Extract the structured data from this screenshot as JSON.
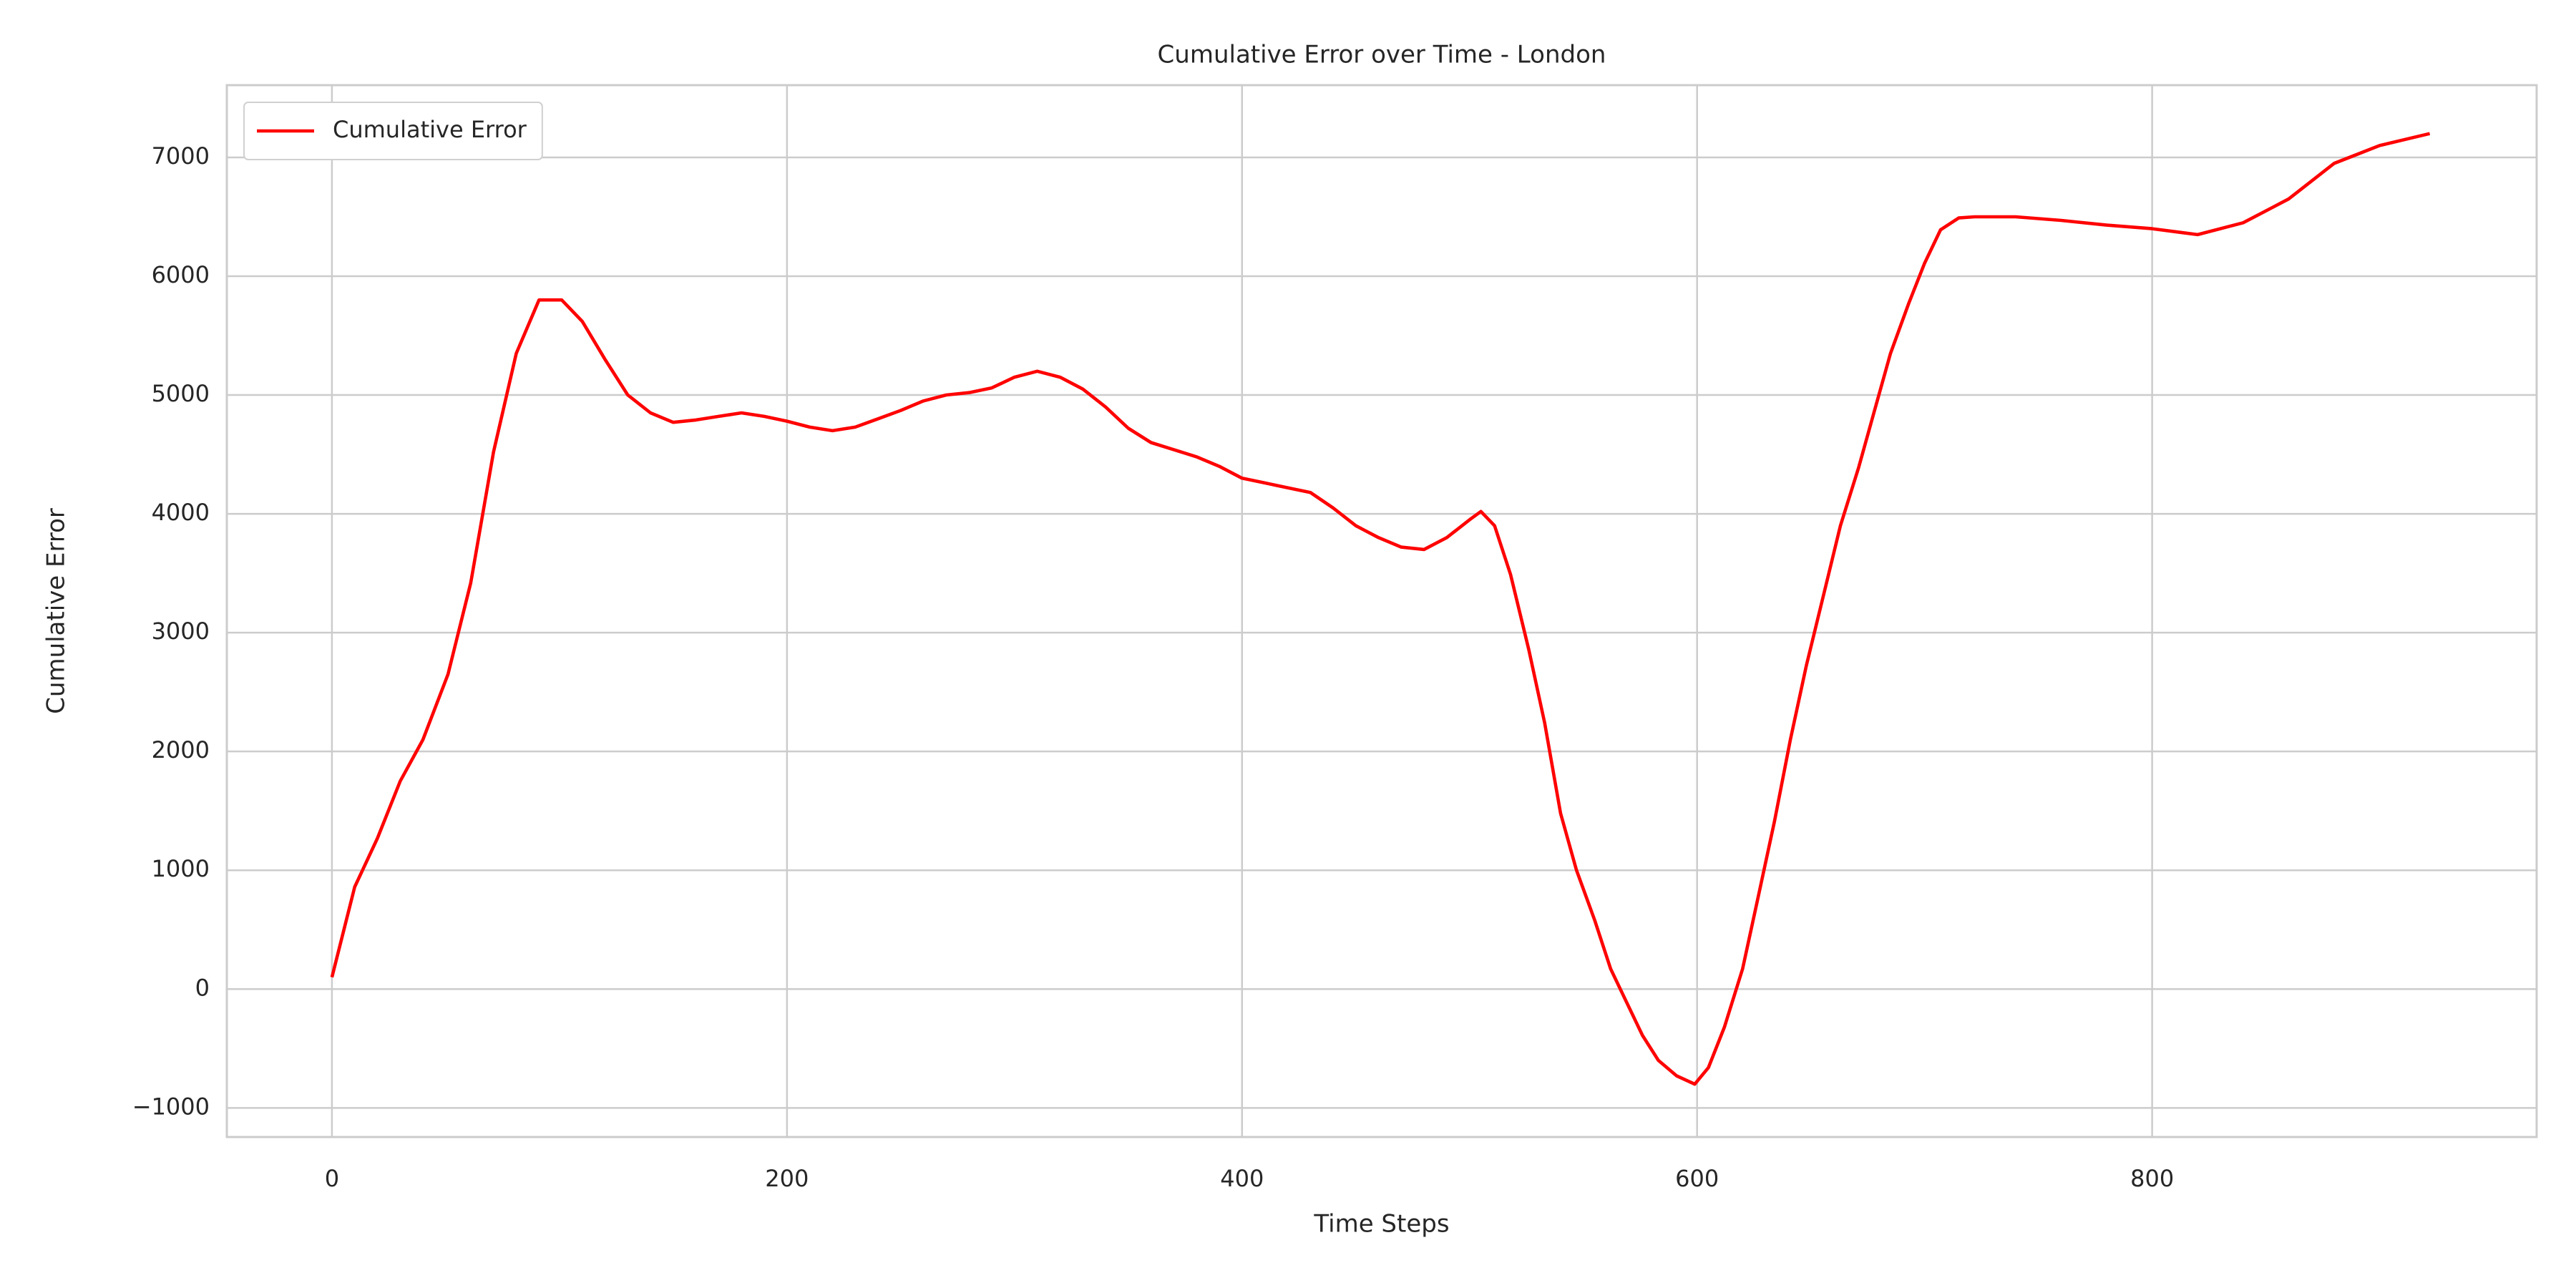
{
  "chart_data": {
    "type": "line",
    "title": "Cumulative Error over Time - London",
    "xlabel": "Time Steps",
    "ylabel": "Cumulative Error",
    "x": [
      0,
      10,
      20,
      30,
      40,
      51,
      61,
      71,
      81,
      91,
      101,
      110,
      120,
      130,
      140,
      150,
      160,
      170,
      180,
      190,
      200,
      210,
      220,
      230,
      240,
      250,
      260,
      270,
      280,
      290,
      300,
      310,
      320,
      330,
      340,
      350,
      360,
      370,
      380,
      390,
      400,
      410,
      420,
      430,
      440,
      450,
      460,
      470,
      480,
      490,
      500,
      505,
      511,
      518,
      526,
      533,
      540,
      547,
      555,
      562,
      569,
      576,
      583,
      591,
      599,
      605,
      612,
      620,
      627,
      634,
      641,
      648,
      656,
      663,
      671,
      678,
      685,
      693,
      700,
      707,
      715,
      722,
      740,
      760,
      780,
      800,
      820,
      840,
      860,
      880,
      900,
      922
    ],
    "series": [
      {
        "name": "Cumulative Error",
        "color": "#ff0000",
        "values": [
          100,
          860,
          1270,
          1750,
          2100,
          2650,
          3420,
          4520,
          5350,
          5800,
          5800,
          5620,
          5300,
          5000,
          4850,
          4770,
          4790,
          4820,
          4850,
          4820,
          4780,
          4730,
          4700,
          4730,
          4800,
          4870,
          4950,
          5000,
          5020,
          5060,
          5150,
          5200,
          5150,
          5050,
          4900,
          4720,
          4600,
          4540,
          4480,
          4400,
          4300,
          4260,
          4220,
          4180,
          4050,
          3900,
          3800,
          3720,
          3700,
          3800,
          3950,
          4020,
          3900,
          3490,
          2860,
          2240,
          1480,
          1000,
          580,
          170,
          -110,
          -390,
          -600,
          -730,
          -800,
          -660,
          -320,
          170,
          790,
          1410,
          2100,
          2720,
          3350,
          3900,
          4390,
          4870,
          5350,
          5770,
          6110,
          6390,
          6490,
          6500,
          6500,
          6470,
          6430,
          6400,
          6350,
          6450,
          6650,
          6950,
          7100,
          7200
        ]
      }
    ],
    "xlim": [
      -46.2,
      969
    ],
    "ylim": [
      -1245,
      7608
    ],
    "xticks": [
      0,
      200,
      400,
      600,
      800
    ],
    "yticks": [
      {
        "value": -1000,
        "label": "−1000"
      },
      0,
      1000,
      2000,
      3000,
      4000,
      5000,
      6000,
      7000
    ],
    "grid": true,
    "legend": "upper left"
  }
}
